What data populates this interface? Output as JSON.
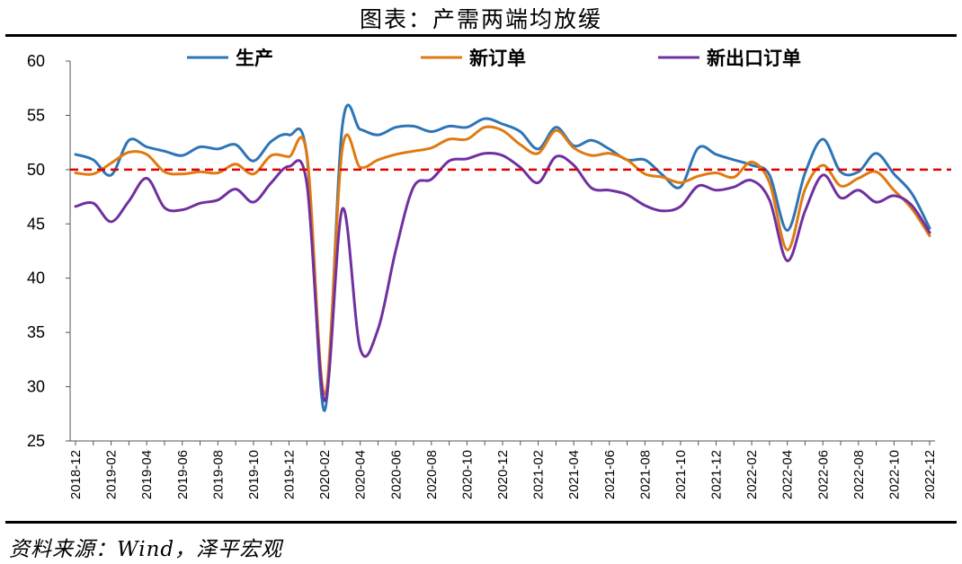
{
  "title": "图表：产需两端均放缓",
  "source": "资料来源：Wind，泽平宏观",
  "colors": {
    "production": "#2E75B6",
    "new_orders": "#E07A10",
    "export_orders": "#7030A0",
    "ref_line": "#E00000"
  },
  "chart_data": {
    "type": "line",
    "ylim": [
      25,
      60
    ],
    "yticks": [
      25,
      30,
      35,
      40,
      45,
      50,
      55,
      60
    ],
    "reference_line": 50,
    "legend_position": "top",
    "x": [
      "2018-12",
      "2019-01",
      "2019-02",
      "2019-03",
      "2019-04",
      "2019-05",
      "2019-06",
      "2019-07",
      "2019-08",
      "2019-09",
      "2019-10",
      "2019-11",
      "2019-12",
      "2020-01",
      "2020-02",
      "2020-03",
      "2020-04",
      "2020-05",
      "2020-06",
      "2020-07",
      "2020-08",
      "2020-09",
      "2020-10",
      "2020-11",
      "2020-12",
      "2021-01",
      "2021-02",
      "2021-03",
      "2021-04",
      "2021-05",
      "2021-06",
      "2021-07",
      "2021-08",
      "2021-09",
      "2021-10",
      "2021-11",
      "2021-12",
      "2022-01",
      "2022-02",
      "2022-03",
      "2022-04",
      "2022-05",
      "2022-06",
      "2022-07",
      "2022-08",
      "2022-09",
      "2022-10",
      "2022-11",
      "2022-12"
    ],
    "xtick_labels": [
      "2018-12",
      "2019-02",
      "2019-04",
      "2019-06",
      "2019-08",
      "2019-10",
      "2019-12",
      "2020-02",
      "2020-04",
      "2020-06",
      "2020-08",
      "2020-10",
      "2020-12",
      "2021-02",
      "2021-04",
      "2021-06",
      "2021-08",
      "2021-10",
      "2021-12",
      "2022-02",
      "2022-04",
      "2022-06",
      "2022-08",
      "2022-10",
      "2022-12"
    ],
    "series": [
      {
        "name": "生产",
        "color": "#2E75B6",
        "values": [
          51.4,
          50.9,
          49.5,
          52.7,
          52.1,
          51.7,
          51.3,
          52.1,
          51.9,
          52.3,
          50.8,
          52.6,
          53.2,
          51.3,
          27.8,
          54.1,
          53.7,
          53.2,
          53.9,
          54.0,
          53.5,
          54.0,
          53.9,
          54.7,
          54.2,
          53.5,
          51.9,
          53.9,
          52.2,
          52.7,
          51.9,
          50.9,
          50.9,
          49.5,
          48.4,
          52.0,
          51.4,
          50.9,
          50.4,
          49.5,
          44.4,
          49.7,
          52.8,
          49.8,
          49.8,
          51.5,
          49.6,
          47.8,
          44.6
        ]
      },
      {
        "name": "新订单",
        "color": "#E07A10",
        "values": [
          49.7,
          49.6,
          50.6,
          51.6,
          51.4,
          49.8,
          49.6,
          49.8,
          49.7,
          50.5,
          49.6,
          51.3,
          51.2,
          51.4,
          29.3,
          52.0,
          50.2,
          50.9,
          51.4,
          51.7,
          52.0,
          52.8,
          52.8,
          53.9,
          53.6,
          52.3,
          51.5,
          53.6,
          52.0,
          51.3,
          51.5,
          50.9,
          49.6,
          49.3,
          48.8,
          49.4,
          49.7,
          49.3,
          50.7,
          48.8,
          42.6,
          48.2,
          50.4,
          48.5,
          49.2,
          49.8,
          48.1,
          46.4,
          43.9
        ]
      },
      {
        "name": "新出口订单",
        "color": "#7030A0",
        "values": [
          46.6,
          46.9,
          45.2,
          47.1,
          49.2,
          46.5,
          46.3,
          46.9,
          47.2,
          48.2,
          47.0,
          48.8,
          50.3,
          48.7,
          28.7,
          46.4,
          33.5,
          35.3,
          42.6,
          48.4,
          49.1,
          50.8,
          51.0,
          51.5,
          51.3,
          50.2,
          48.8,
          51.2,
          50.4,
          48.3,
          48.1,
          47.7,
          46.7,
          46.2,
          46.6,
          48.5,
          48.1,
          48.4,
          49.0,
          47.2,
          41.6,
          46.2,
          49.5,
          47.4,
          48.1,
          47.0,
          47.6,
          46.7,
          44.2
        ]
      }
    ]
  }
}
